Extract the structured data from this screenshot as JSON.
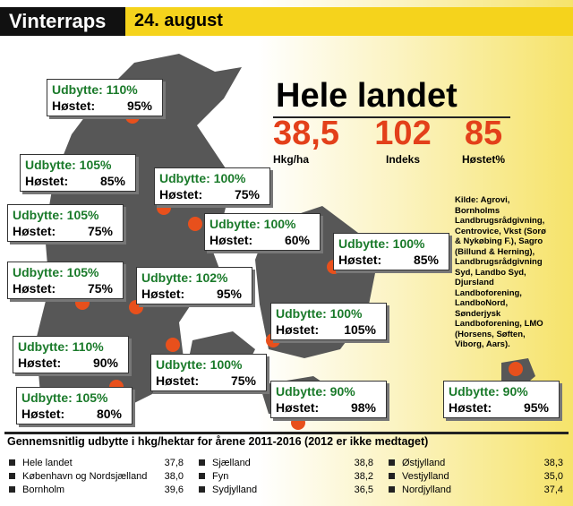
{
  "header": {
    "title": "Vinterraps",
    "date": "24. august"
  },
  "summary": {
    "title": "Hele landet",
    "stats": [
      {
        "value": "38,5",
        "label": "Hkg/ha"
      },
      {
        "value": "102",
        "label": "Indeks"
      },
      {
        "value": "85",
        "label": "Høstet%"
      }
    ]
  },
  "source": "Kilde: Agrovi, Bornholms Landbrugsrådgivning, Centrovice, Vkst (Sorø & Nykøbing F.), Sagro (Billund & Herning), Landbrugsrådgivning Syd, Landbo Syd, Djursland Landboforening, LandboNord, Sønderjysk Landboforening, LMO (Horsens, Søften, Viborg, Aars).",
  "regions": [
    {
      "yield": "Udbytte: 110%",
      "harvested_label": "Høstet:",
      "harvested": "95%"
    },
    {
      "yield": "Udbytte: 105%",
      "harvested_label": "Høstet:",
      "harvested": "85%"
    },
    {
      "yield": "Udbytte: 100%",
      "harvested_label": "Høstet:",
      "harvested": "75%"
    },
    {
      "yield": "Udbytte: 105%",
      "harvested_label": "Høstet:",
      "harvested": "75%"
    },
    {
      "yield": "Udbytte: 100%",
      "harvested_label": "Høstet:",
      "harvested": "60%"
    },
    {
      "yield": "Udbytte: 100%",
      "harvested_label": "Høstet:",
      "harvested": "85%"
    },
    {
      "yield": "Udbytte: 105%",
      "harvested_label": "Høstet:",
      "harvested": "75%"
    },
    {
      "yield": "Udbytte: 102%",
      "harvested_label": "Høstet:",
      "harvested": "95%"
    },
    {
      "yield": "Udbytte: 100%",
      "harvested_label": "Høstet:",
      "harvested": "105%"
    },
    {
      "yield": "Udbytte: 110%",
      "harvested_label": "Høstet:",
      "harvested": "90%"
    },
    {
      "yield": "Udbytte: 100%",
      "harvested_label": "Høstet:",
      "harvested": "75%"
    },
    {
      "yield": "Udbytte: 105%",
      "harvested_label": "Høstet:",
      "harvested": "80%"
    },
    {
      "yield": "Udbytte: 90%",
      "harvested_label": "Høstet:",
      "harvested": "98%"
    },
    {
      "yield": "Udbytte: 90%",
      "harvested_label": "Høstet:",
      "harvested": "95%"
    }
  ],
  "footer": {
    "title": "Gennemsnitlig udbytte i hkg/hektar for årene 2011-2016 (2012 er ikke medtaget)",
    "rows": [
      [
        "Hele landet",
        "37,8"
      ],
      [
        "København og Nordsjælland",
        "38,0"
      ],
      [
        "Bornholm",
        "39,6"
      ],
      [
        "Sjælland",
        "38,8"
      ],
      [
        "Fyn",
        "38,2"
      ],
      [
        "Sydjylland",
        "36,5"
      ],
      [
        "Østjylland",
        "38,3"
      ],
      [
        "Vestjylland",
        "35,0"
      ],
      [
        "Nordjylland",
        "37,4"
      ]
    ]
  }
}
